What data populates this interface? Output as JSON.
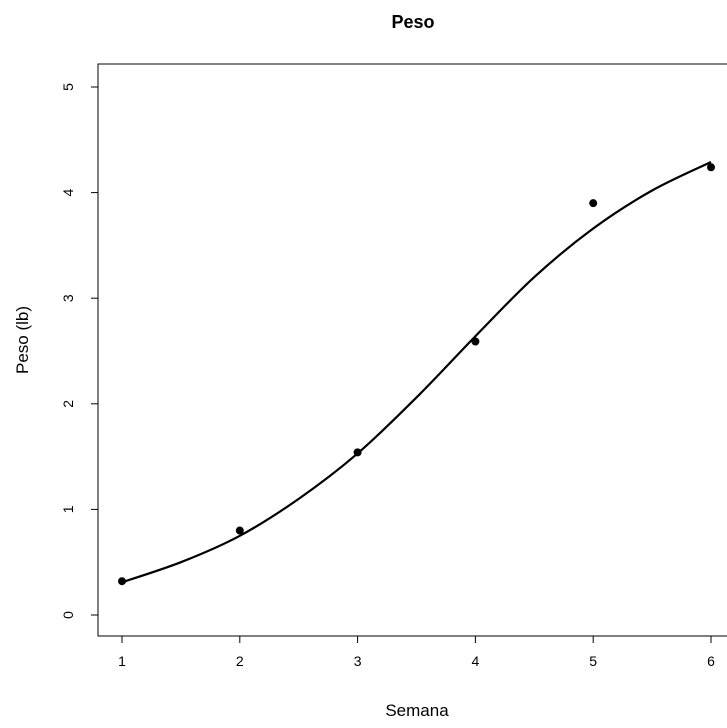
{
  "chart_data": {
    "type": "scatter",
    "title": "Peso",
    "xlabel": "Semana",
    "ylabel": "Peso (lb)",
    "xlim": [
      1,
      6
    ],
    "ylim": [
      0,
      5
    ],
    "x_ticks": [
      "1",
      "2",
      "3",
      "4",
      "5",
      "6"
    ],
    "y_ticks": [
      "0",
      "1",
      "2",
      "3",
      "4",
      "5"
    ],
    "grid": false,
    "series": [
      {
        "kind": "points",
        "x": [
          1,
          2,
          3,
          4,
          5,
          6
        ],
        "y": [
          0.32,
          0.8,
          1.54,
          2.59,
          3.9,
          4.24
        ]
      },
      {
        "kind": "fitted-curve",
        "x": [
          1,
          1.5,
          2,
          2.5,
          3,
          3.5,
          4,
          4.5,
          5,
          5.5,
          6
        ],
        "y": [
          0.31,
          0.5,
          0.75,
          1.1,
          1.53,
          2.06,
          2.64,
          3.2,
          3.66,
          4.02,
          4.29
        ]
      }
    ]
  }
}
